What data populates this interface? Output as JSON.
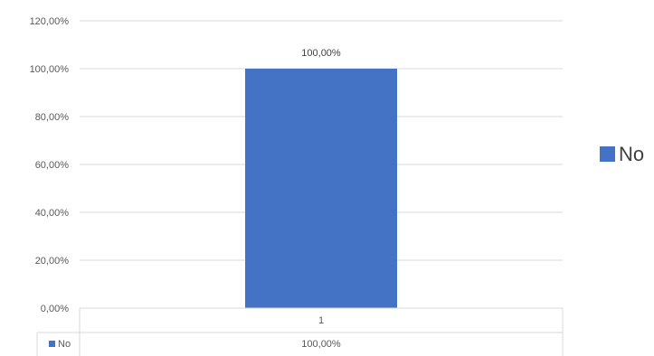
{
  "chart_data": {
    "type": "bar",
    "categories": [
      "1"
    ],
    "series": [
      {
        "name": "No",
        "values": [
          1.0
        ],
        "value_labels": [
          "100,00%"
        ],
        "color": "#4472C4"
      }
    ],
    "y_ticks": [
      "0,00%",
      "20,00%",
      "40,00%",
      "60,00%",
      "80,00%",
      "100,00%",
      "120,00%"
    ],
    "ylim": [
      0,
      1.2
    ],
    "grid": true,
    "legend": {
      "position": "right",
      "entries": [
        "No"
      ]
    },
    "data_table": {
      "header": [
        "1"
      ],
      "rows": [
        {
          "series": "No",
          "cells": [
            "100,00%"
          ]
        }
      ]
    }
  }
}
